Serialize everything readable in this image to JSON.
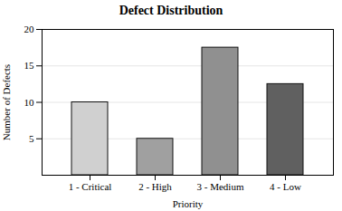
{
  "chart_data": {
    "type": "bar",
    "title": "Defect Distribution",
    "xlabel": "Priority",
    "ylabel": "Number of Defects",
    "categories": [
      "1 - Critical",
      "2 - High",
      "3 - Medium",
      "4 - Low"
    ],
    "values": [
      10,
      5,
      17.5,
      12.5
    ],
    "colors": [
      "#d0d0d0",
      "#a0a0a0",
      "#909090",
      "#606060"
    ],
    "ylim": [
      0,
      20
    ],
    "yticks": [
      5,
      10,
      15,
      20
    ],
    "grid": true
  }
}
